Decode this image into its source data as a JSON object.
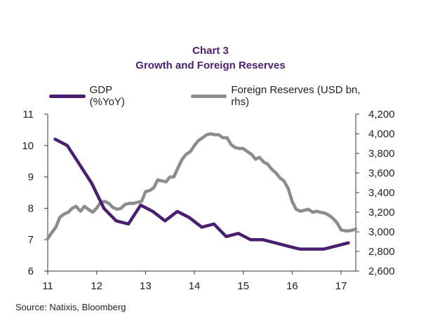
{
  "chart_data": {
    "type": "line",
    "title": "Chart 3",
    "subtitle": "Growth and Foreign Reserves",
    "source": "Source: Natixis, Bloomberg",
    "x_ticks": [
      "11",
      "12",
      "13",
      "14",
      "15",
      "16",
      "17"
    ],
    "xlim": [
      11,
      17.3
    ],
    "y_left": {
      "ticks": [
        "6",
        "7",
        "8",
        "9",
        "10",
        "11"
      ],
      "lim": [
        6,
        11
      ]
    },
    "y_right": {
      "ticks": [
        "2,600",
        "2,800",
        "3,000",
        "3,200",
        "3,400",
        "3,600",
        "3,800",
        "4,000",
        "4,200"
      ],
      "lim": [
        2600,
        4200
      ]
    },
    "grid": false,
    "legend_position": "top",
    "series": [
      {
        "name": "GDP (%YoY)",
        "axis": "left",
        "color": "#4b1f6f",
        "x": [
          11.15,
          11.4,
          11.65,
          11.9,
          12.15,
          12.4,
          12.65,
          12.9,
          13.15,
          13.4,
          13.65,
          13.9,
          14.15,
          14.4,
          14.65,
          14.9,
          15.15,
          15.4,
          15.65,
          15.9,
          16.15,
          16.4,
          16.65,
          16.9,
          17.15
        ],
        "values": [
          10.2,
          10.0,
          9.4,
          8.8,
          8.0,
          7.6,
          7.5,
          8.1,
          7.9,
          7.6,
          7.9,
          7.7,
          7.4,
          7.5,
          7.1,
          7.2,
          7.0,
          7.0,
          6.9,
          6.8,
          6.7,
          6.7,
          6.7,
          6.8,
          6.9
        ]
      },
      {
        "name": "Foreign Reserves (USD bn, rhs)",
        "axis": "right",
        "color": "#8c8c8c",
        "x": [
          11.0,
          11.08,
          11.17,
          11.25,
          11.33,
          11.42,
          11.5,
          11.58,
          11.67,
          11.75,
          11.83,
          11.92,
          12.0,
          12.08,
          12.17,
          12.25,
          12.33,
          12.42,
          12.5,
          12.58,
          12.67,
          12.75,
          12.83,
          12.92,
          13.0,
          13.08,
          13.17,
          13.25,
          13.33,
          13.42,
          13.5,
          13.58,
          13.67,
          13.75,
          13.83,
          13.92,
          14.0,
          14.08,
          14.17,
          14.25,
          14.33,
          14.42,
          14.5,
          14.58,
          14.67,
          14.75,
          14.83,
          14.92,
          15.0,
          15.08,
          15.17,
          15.25,
          15.33,
          15.42,
          15.5,
          15.58,
          15.67,
          15.75,
          15.83,
          15.92,
          16.0,
          16.08,
          16.17,
          16.25,
          16.33,
          16.42,
          16.5,
          16.58,
          16.67,
          16.75,
          16.83,
          16.92,
          17.0,
          17.08,
          17.17,
          17.25,
          17.3
        ],
        "values": [
          2930,
          2990,
          3050,
          3150,
          3180,
          3200,
          3240,
          3260,
          3210,
          3260,
          3230,
          3200,
          3240,
          3300,
          3310,
          3290,
          3250,
          3230,
          3240,
          3280,
          3290,
          3290,
          3300,
          3310,
          3410,
          3420,
          3450,
          3530,
          3520,
          3510,
          3560,
          3560,
          3660,
          3740,
          3790,
          3820,
          3880,
          3930,
          3960,
          3990,
          4000,
          3990,
          3990,
          3960,
          3960,
          3890,
          3860,
          3850,
          3850,
          3820,
          3790,
          3740,
          3760,
          3710,
          3690,
          3640,
          3600,
          3550,
          3520,
          3440,
          3310,
          3230,
          3210,
          3220,
          3230,
          3200,
          3210,
          3200,
          3190,
          3170,
          3140,
          3090,
          3020,
          3010,
          3010,
          3020,
          3030
        ]
      }
    ]
  }
}
